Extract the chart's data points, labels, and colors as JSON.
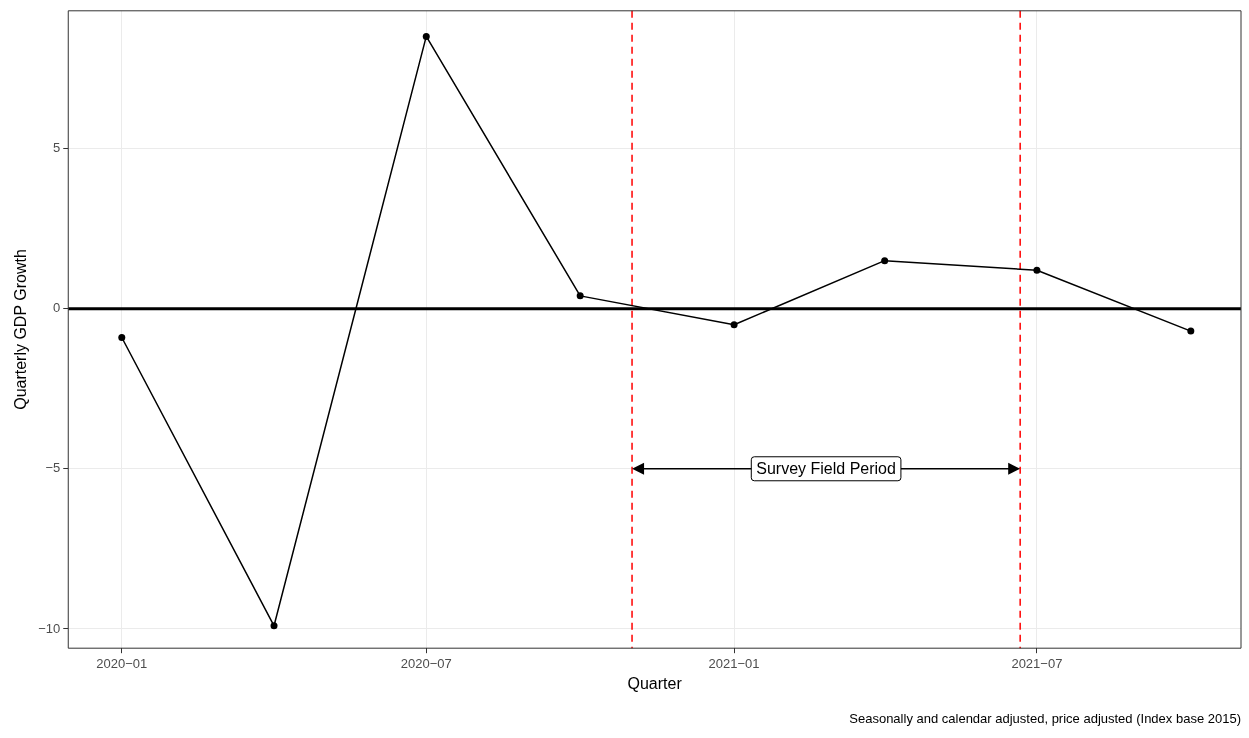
{
  "chart_data": {
    "type": "line",
    "xlabel": "Quarter",
    "ylabel": "Quarterly GDP Growth",
    "x": [
      "2020-01",
      "2020-04",
      "2020-07",
      "2020-10",
      "2021-01",
      "2021-04",
      "2021-07",
      "2021-10"
    ],
    "series": [
      {
        "color": "#000000",
        "values": [
          -0.9,
          -9.9,
          8.5,
          0.4,
          -0.5,
          1.5,
          1.2,
          -0.7
        ]
      }
    ],
    "xlim": [
      "2019-11-30",
      "2021-10-31"
    ],
    "xticks": [
      {
        "value": "2020-01",
        "label": "2020−01"
      },
      {
        "value": "2020-07",
        "label": "2020−07"
      },
      {
        "value": "2021-01",
        "label": "2021−01"
      },
      {
        "value": "2021-07",
        "label": "2021−07"
      }
    ],
    "ylim": [
      -10.6,
      9.3
    ],
    "yticks": [
      {
        "value": -10,
        "label": "−10"
      },
      {
        "value": -5,
        "label": "−5"
      },
      {
        "value": 0,
        "label": "0"
      },
      {
        "value": 5,
        "label": "5"
      }
    ],
    "ref_lines": [
      {
        "axis": "y",
        "value": 0,
        "color": "#000000",
        "line_style": "solid"
      },
      {
        "axis": "x",
        "value": "2020-11-01",
        "color": "#ff0000",
        "line_style": "dashed"
      },
      {
        "axis": "x",
        "value": "2021-06-21",
        "color": "#ff0000",
        "line_style": "dashed"
      }
    ],
    "annotations": [
      "Survey Field Period",
      "Seasonally and calendar adjusted, price adjusted (Index base 2015)"
    ],
    "grid": true,
    "legend": false,
    "marker": "circle",
    "line_style": "solid"
  }
}
